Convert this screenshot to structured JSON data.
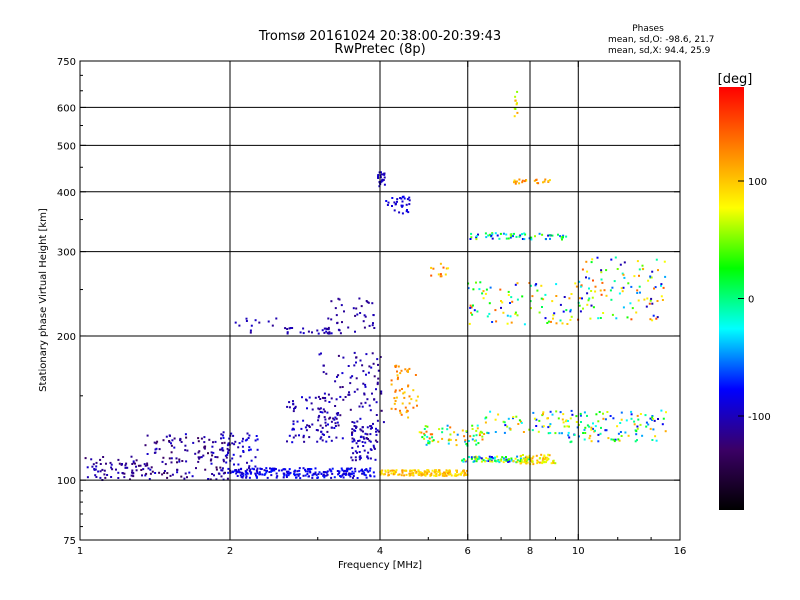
{
  "header": {
    "title_line1": "Tromsø 20161024 20:38:00-20:39:43",
    "title_line2": "RwPretec (8p)"
  },
  "phases_box": {
    "heading": "Phases",
    "line_o": "mean, sd,O: -98.6, 21.7",
    "line_x": "mean, sd,X:  94.4, 25.9"
  },
  "colorbar": {
    "unit_label": "[deg]",
    "tick_labels": [
      "100",
      "0",
      "-100"
    ],
    "tick_values": [
      100,
      0,
      -100
    ],
    "range": [
      -180,
      180
    ],
    "colors": [
      "#000000",
      "#3b0066",
      "#0000ff",
      "#00ffff",
      "#00ff00",
      "#ffff00",
      "#ff7f00",
      "#ff0000"
    ]
  },
  "chart_data": {
    "type": "scatter",
    "title": "Tromsø 20161024 20:38:00-20:39:43",
    "subtitle": "RwPretec (8p)",
    "xlabel": "Frequency [MHz]",
    "ylabel": "Stationary phase Virtual Height [km]",
    "x_scale": "log",
    "y_scale": "log",
    "xlim": [
      1,
      16
    ],
    "ylim": [
      75,
      750
    ],
    "x_ticks": [
      1,
      2,
      4,
      6,
      8,
      10,
      16
    ],
    "x_tick_labels": [
      "1",
      "2",
      "4",
      "6",
      "8",
      "10",
      "16"
    ],
    "y_ticks": [
      75,
      100,
      200,
      300,
      400,
      500,
      600,
      750
    ],
    "y_tick_labels": [
      "75",
      "100",
      "200",
      "300",
      "400",
      "500",
      "600",
      "750"
    ],
    "grid_x": [
      2,
      4,
      6,
      8,
      10
    ],
    "grid_y": [
      100,
      200,
      300,
      400,
      500,
      600
    ],
    "grid": true,
    "color_encoding": "phase [deg]",
    "clusters": [
      {
        "x": [
          1.0,
          1.35
        ],
        "y": [
          100,
          112
        ],
        "phase": [
          -130,
          -95
        ],
        "n": 70
      },
      {
        "x": [
          1.35,
          2.0
        ],
        "y": [
          100,
          125
        ],
        "phase": [
          -140,
          -90
        ],
        "n": 140
      },
      {
        "x": [
          1.9,
          2.3
        ],
        "y": [
          103,
          128
        ],
        "phase": [
          -110,
          -80
        ],
        "n": 60
      },
      {
        "x": [
          2.0,
          3.9
        ],
        "y": [
          101,
          106
        ],
        "phase": [
          -100,
          -70
        ],
        "n": 220
      },
      {
        "x": [
          2.6,
          3.3
        ],
        "y": [
          120,
          150
        ],
        "phase": [
          -115,
          -85
        ],
        "n": 80
      },
      {
        "x": [
          3.0,
          4.1
        ],
        "y": [
          120,
          185
        ],
        "phase": [
          -125,
          -90
        ],
        "n": 120
      },
      {
        "x": [
          3.5,
          3.95
        ],
        "y": [
          110,
          130
        ],
        "phase": [
          -115,
          -90
        ],
        "n": 60
      },
      {
        "x": [
          2.55,
          3.35
        ],
        "y": [
          202,
          208
        ],
        "phase": [
          -115,
          -95
        ],
        "n": 30
      },
      {
        "x": [
          2.05,
          2.55
        ],
        "y": [
          201,
          218
        ],
        "phase": [
          -115,
          -95
        ],
        "n": 12
      },
      {
        "x": [
          3.1,
          3.9
        ],
        "y": [
          204,
          240
        ],
        "phase": [
          -120,
          -100
        ],
        "n": 35
      },
      {
        "x": [
          3.95,
          4.1
        ],
        "y": [
          408,
          440
        ],
        "phase": [
          -105,
          -90
        ],
        "n": 25
      },
      {
        "x": [
          4.1,
          4.6
        ],
        "y": [
          360,
          392
        ],
        "phase": [
          -100,
          -80
        ],
        "n": 30
      },
      {
        "x": [
          4.0,
          6.0
        ],
        "y": [
          102,
          105
        ],
        "phase": [
          80,
          120
        ],
        "n": 150
      },
      {
        "x": [
          4.2,
          4.8
        ],
        "y": [
          135,
          175
        ],
        "phase": [
          90,
          140
        ],
        "n": 50
      },
      {
        "x": [
          4.8,
          6.5
        ],
        "y": [
          118,
          130
        ],
        "phase": [
          -60,
          140
        ],
        "n": 70
      },
      {
        "x": [
          5.8,
          8.0
        ],
        "y": [
          109,
          112
        ],
        "phase": [
          -90,
          100
        ],
        "n": 90
      },
      {
        "x": [
          7.6,
          9.0
        ],
        "y": [
          108,
          113
        ],
        "phase": [
          60,
          120
        ],
        "n": 60
      },
      {
        "x": [
          6.5,
          9.5
        ],
        "y": [
          125,
          140
        ],
        "phase": [
          -80,
          120
        ],
        "n": 60
      },
      {
        "x": [
          9.5,
          15.0
        ],
        "y": [
          120,
          140
        ],
        "phase": [
          -100,
          120
        ],
        "n": 110
      },
      {
        "x": [
          6.0,
          9.5
        ],
        "y": [
          318,
          328
        ],
        "phase": [
          -100,
          60
        ],
        "n": 60
      },
      {
        "x": [
          6.0,
          10.0
        ],
        "y": [
          210,
          260
        ],
        "phase": [
          -100,
          150
        ],
        "n": 90
      },
      {
        "x": [
          10.0,
          15.0
        ],
        "y": [
          215,
          295
        ],
        "phase": [
          -110,
          150
        ],
        "n": 110
      },
      {
        "x": [
          5.0,
          5.5
        ],
        "y": [
          265,
          285
        ],
        "phase": [
          80,
          150
        ],
        "n": 12
      },
      {
        "x": [
          7.4,
          8.8
        ],
        "y": [
          415,
          425
        ],
        "phase": [
          90,
          140
        ],
        "n": 25
      },
      {
        "x": [
          7.45,
          7.55
        ],
        "y": [
          575,
          660
        ],
        "phase": [
          40,
          120
        ],
        "n": 10
      }
    ]
  }
}
